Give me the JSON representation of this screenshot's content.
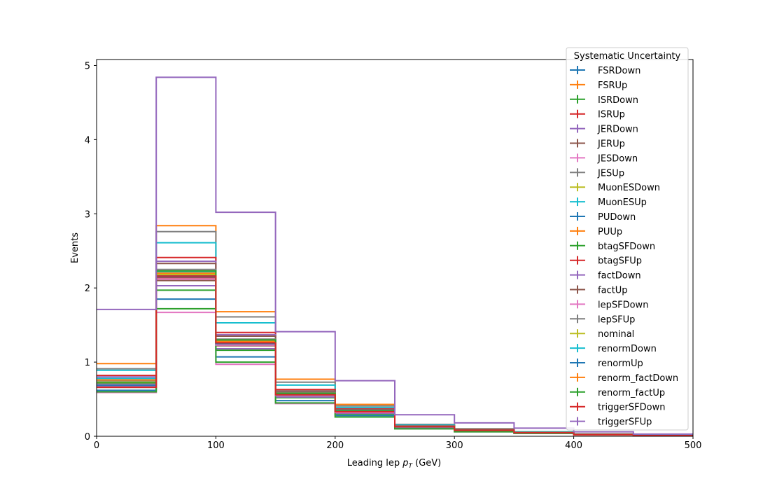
{
  "chart_data": {
    "type": "histogram-step",
    "xlabel_main": "Leading lep ",
    "xlabel_var": "p",
    "xlabel_sub": "T",
    "xlabel_unit": " (GeV)",
    "ylabel": "Events",
    "xlim": [
      0,
      500
    ],
    "ylim": [
      0,
      5.08
    ],
    "xticks": [
      0,
      100,
      200,
      300,
      400,
      500
    ],
    "yticks": [
      0,
      1,
      2,
      3,
      4,
      5
    ],
    "bin_edges": [
      0,
      50,
      100,
      150,
      200,
      250,
      300,
      350,
      400,
      450,
      500
    ],
    "legend": {
      "title": "Systematic Uncertainty",
      "placement": "top-right"
    },
    "series": [
      {
        "name": "FSRDown",
        "color": "#1f77b4",
        "values": [
          0.62,
          1.85,
          1.07,
          0.48,
          0.28,
          0.11,
          0.07,
          0.04,
          0.02,
          0.01
        ]
      },
      {
        "name": "FSRUp",
        "color": "#ff7f0e",
        "values": [
          0.98,
          2.84,
          1.68,
          0.77,
          0.43,
          0.16,
          0.1,
          0.06,
          0.03,
          0.02
        ]
      },
      {
        "name": "ISRDown",
        "color": "#2ca02c",
        "values": [
          0.66,
          1.97,
          1.16,
          0.52,
          0.3,
          0.12,
          0.07,
          0.04,
          0.02,
          0.01
        ]
      },
      {
        "name": "ISRUp",
        "color": "#d62728",
        "values": [
          0.72,
          2.14,
          1.24,
          0.56,
          0.33,
          0.13,
          0.08,
          0.05,
          0.02,
          0.01
        ]
      },
      {
        "name": "JERDown",
        "color": "#9467bd",
        "values": [
          0.68,
          2.03,
          1.18,
          0.53,
          0.31,
          0.12,
          0.08,
          0.04,
          0.02,
          0.01
        ]
      },
      {
        "name": "JERUp",
        "color": "#8c564b",
        "values": [
          0.7,
          2.1,
          1.22,
          0.55,
          0.32,
          0.13,
          0.08,
          0.05,
          0.02,
          0.01
        ]
      },
      {
        "name": "JESDown",
        "color": "#e377c2",
        "values": [
          0.59,
          1.67,
          0.97,
          0.44,
          0.26,
          0.1,
          0.06,
          0.04,
          0.02,
          0.01
        ]
      },
      {
        "name": "JESUp",
        "color": "#7f7f7f",
        "values": [
          0.91,
          2.76,
          1.61,
          0.73,
          0.41,
          0.16,
          0.1,
          0.06,
          0.03,
          0.02
        ]
      },
      {
        "name": "MuonESDown",
        "color": "#bcbd22",
        "values": [
          0.71,
          2.15,
          1.25,
          0.56,
          0.33,
          0.13,
          0.08,
          0.05,
          0.02,
          0.01
        ]
      },
      {
        "name": "MuonESUp",
        "color": "#17becf",
        "values": [
          0.89,
          2.61,
          1.53,
          0.69,
          0.39,
          0.15,
          0.09,
          0.06,
          0.03,
          0.02
        ]
      },
      {
        "name": "PUDown",
        "color": "#1f77b4",
        "values": [
          0.73,
          2.17,
          1.26,
          0.57,
          0.33,
          0.13,
          0.08,
          0.05,
          0.02,
          0.01
        ]
      },
      {
        "name": "PUUp",
        "color": "#ff7f0e",
        "values": [
          0.7,
          2.19,
          1.27,
          0.57,
          0.34,
          0.13,
          0.08,
          0.05,
          0.02,
          0.01
        ]
      },
      {
        "name": "btagSFDown",
        "color": "#2ca02c",
        "values": [
          0.6,
          1.72,
          1.0,
          0.45,
          0.26,
          0.1,
          0.06,
          0.04,
          0.02,
          0.01
        ]
      },
      {
        "name": "btagSFUp",
        "color": "#d62728",
        "values": [
          0.82,
          2.41,
          1.4,
          0.63,
          0.37,
          0.14,
          0.09,
          0.05,
          0.03,
          0.01
        ]
      },
      {
        "name": "factDown",
        "color": "#9467bd",
        "values": [
          0.8,
          2.36,
          1.37,
          0.61,
          0.36,
          0.14,
          0.09,
          0.05,
          0.03,
          0.01
        ]
      },
      {
        "name": "factUp",
        "color": "#8c564b",
        "values": [
          0.76,
          2.33,
          1.35,
          0.61,
          0.36,
          0.14,
          0.09,
          0.05,
          0.03,
          0.01
        ]
      },
      {
        "name": "lepSFDown",
        "color": "#e377c2",
        "values": [
          0.71,
          2.12,
          1.23,
          0.55,
          0.32,
          0.13,
          0.08,
          0.05,
          0.02,
          0.01
        ]
      },
      {
        "name": "lepSFUp",
        "color": "#7f7f7f",
        "values": [
          0.75,
          2.25,
          1.31,
          0.59,
          0.35,
          0.14,
          0.08,
          0.05,
          0.02,
          0.01
        ]
      },
      {
        "name": "nominal",
        "color": "#bcbd22",
        "values": [
          0.73,
          2.18,
          1.27,
          0.57,
          0.33,
          0.13,
          0.08,
          0.05,
          0.02,
          0.01
        ]
      },
      {
        "name": "renormDown",
        "color": "#17becf",
        "values": [
          0.78,
          2.22,
          1.29,
          0.58,
          0.34,
          0.13,
          0.08,
          0.05,
          0.02,
          0.01
        ]
      },
      {
        "name": "renormUp",
        "color": "#1f77b4",
        "values": [
          0.69,
          2.15,
          1.25,
          0.56,
          0.33,
          0.13,
          0.08,
          0.05,
          0.02,
          0.01
        ]
      },
      {
        "name": "renorm_factDown",
        "color": "#ff7f0e",
        "values": [
          0.76,
          2.2,
          1.28,
          0.58,
          0.34,
          0.13,
          0.08,
          0.05,
          0.02,
          0.01
        ]
      },
      {
        "name": "renorm_factUp",
        "color": "#2ca02c",
        "values": [
          0.72,
          2.23,
          1.3,
          0.58,
          0.34,
          0.13,
          0.08,
          0.05,
          0.02,
          0.01
        ]
      },
      {
        "name": "triggerSFDown",
        "color": "#d62728",
        "values": [
          0.66,
          2.16,
          1.26,
          0.56,
          0.33,
          0.13,
          0.08,
          0.05,
          0.02,
          0.01
        ]
      },
      {
        "name": "triggerSFUp",
        "color": "#9467bd",
        "values": [
          1.71,
          4.84,
          3.02,
          1.41,
          0.75,
          0.29,
          0.18,
          0.11,
          0.06,
          0.03
        ]
      }
    ]
  }
}
